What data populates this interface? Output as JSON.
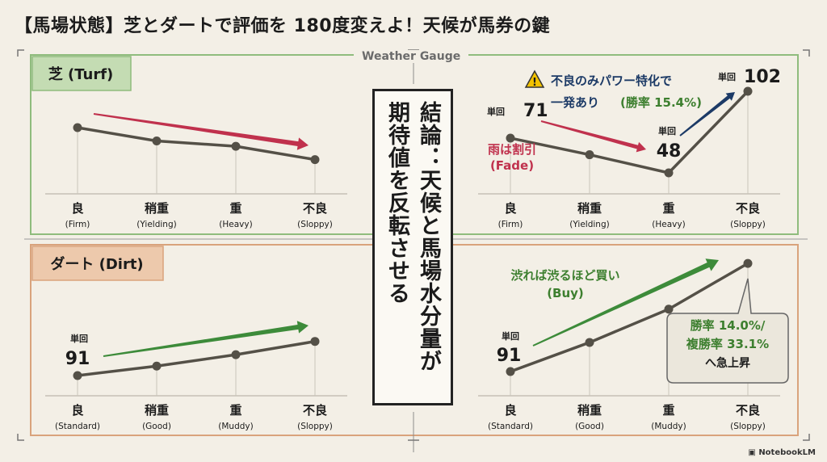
{
  "title": "【馬場状態】芝とダートで評価を 180度変えよ！天候が馬券の鍵",
  "gauge_label": "Weather Gauge",
  "brand": "NotebookLM",
  "colors": {
    "turf_border": "#8fbc7d",
    "turf_tab": "#c4dcb3",
    "dirt_border": "#d9a37c",
    "dirt_tab": "#edc9ac",
    "red_arrow": "#c0314d",
    "green_arrow": "#3d8b3a",
    "navy_arrow": "#1c3a66",
    "line": "#545047",
    "green_text": "#3d7f2f",
    "red_text": "#c0314d",
    "navy_text": "#1c3a66"
  },
  "conclusion": {
    "lines": [
      "結論：天候と馬場水分量が",
      "期待値を反転させる"
    ]
  },
  "chart_data": [
    {
      "id": "turf-trend",
      "type": "line",
      "section": "芝 (Turf)",
      "categories": [
        "良",
        "稍重",
        "重",
        "不良"
      ],
      "sublabels": [
        "(Firm)",
        "(Yielding)",
        "(Heavy)",
        "(Sloppy)"
      ],
      "values": [
        4,
        3,
        2.6,
        1.6
      ],
      "arrow": "down"
    },
    {
      "id": "turf-roi",
      "type": "line",
      "section": "芝 (Turf)",
      "categories": [
        "良",
        "稍重",
        "重",
        "不良"
      ],
      "sublabels": [
        "(Firm)",
        "(Yielding)",
        "(Heavy)",
        "(Sloppy)"
      ],
      "values": [
        71,
        60,
        48,
        102
      ],
      "value_caption": "単回",
      "annotations": {
        "fade": "雨は割引\n(Fade)",
        "warning": "不良のみパワー特化で\n一発あり",
        "warning_rate": "(勝率 15.4%)"
      }
    },
    {
      "id": "dirt-trend",
      "type": "line",
      "section": "ダート (Dirt)",
      "categories": [
        "良",
        "稍重",
        "重",
        "不良"
      ],
      "sublabels": [
        "(Standard)",
        "(Good)",
        "(Muddy)",
        "(Sloppy)"
      ],
      "values": [
        91,
        93.5,
        96.5,
        100
      ],
      "value_caption": "単回",
      "first_label": "91",
      "arrow": "up"
    },
    {
      "id": "dirt-roi",
      "type": "line",
      "section": "ダート (Dirt)",
      "categories": [
        "良",
        "稍重",
        "重",
        "不良"
      ],
      "sublabels": [
        "(Standard)",
        "(Good)",
        "(Muddy)",
        "(Sloppy)"
      ],
      "values": [
        91,
        98,
        106,
        117
      ],
      "value_caption": "単回",
      "first_label": "91",
      "annotations": {
        "buy": "渋れば渋るほど買い\n(Buy)",
        "callout": "勝率 14.0%/\n複勝率 33.1%\nへ急上昇"
      }
    }
  ],
  "sections": {
    "turf": "芝 (Turf)",
    "dirt": "ダート (Dirt)"
  }
}
